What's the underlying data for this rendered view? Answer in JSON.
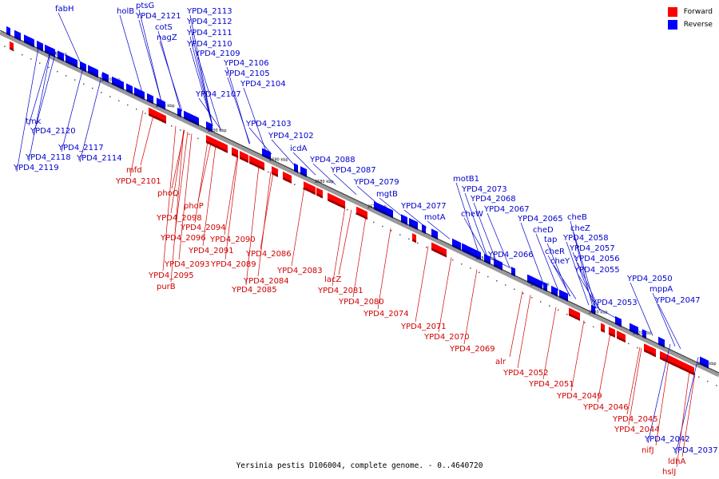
{
  "caption": "Yersinia pestis D106004, complete genome. - 0..4640720",
  "legend": {
    "forward": {
      "label": "Forward",
      "color": "#ff0000"
    },
    "reverse": {
      "label": "Reverse",
      "color": "#0000ff"
    }
  },
  "ticks": [
    "2730 kbp",
    "2720 kbp",
    "2710 kbp",
    "2700 kbp",
    "2690 kbp",
    "2680 kbp",
    "2670 kbp",
    "2660 kbp",
    "2650 kbp",
    "2640 kbp",
    "2630 kbp",
    "2620 kbp",
    "2610 kbp"
  ],
  "reverse_genes": [
    "fabH",
    "holB",
    "ptsG",
    "YPD4_2121",
    "YPD4_2113",
    "YPD4_2112",
    "cotS",
    "nagZ",
    "YPD4_2111",
    "YPD4_2110",
    "YPD4_2109",
    "YPD4_2106",
    "YPD4_2105",
    "YPD4_2104",
    "YPD4_2107",
    "tmk",
    "YPD4_2120",
    "YPD4_2117",
    "YPD4_2118",
    "YPD4_2114",
    "YPD4_2119",
    "YPD4_2103",
    "YPD4_2102",
    "icdA",
    "YPD4_2088",
    "YPD4_2087",
    "YPD4_2079",
    "mgtB",
    "motB1",
    "YPD4_2073",
    "YPD4_2068",
    "YPD4_2077",
    "YPD4_2067",
    "motA",
    "cheW",
    "YPD4_2065",
    "cheB",
    "cheD",
    "cheZ",
    "tap",
    "YPD4_2058",
    "YPD4_2066",
    "cheR",
    "YPD4_2057",
    "cheY",
    "YPD4_2056",
    "YPD4_2055",
    "YPD4_2050",
    "mppA",
    "YPD4_2047",
    "YPD4_2053",
    "YPD4_2042",
    "YPD4_2037"
  ],
  "forward_genes": [
    "mfd",
    "YPD4_2101",
    "phoQ",
    "phoP",
    "YPD4_2098",
    "YPD4_2094",
    "YPD4_2096",
    "YPD4_2090",
    "YPD4_2091",
    "YPD4_2086",
    "YPD4_2093",
    "YPD4_2089",
    "YPD4_2095",
    "purB",
    "YPD4_2083",
    "YPD4_2084",
    "YPD4_2085",
    "lacZ",
    "YPD4_2081",
    "YPD4_2080",
    "YPD4_2074",
    "YPD4_2071",
    "YPD4_2070",
    "YPD4_2069",
    "alr",
    "YPD4_2052",
    "YPD4_2051",
    "YPD4_2049",
    "YPD4_2046",
    "YPD4_2045",
    "YPD4_2044",
    "nifJ",
    "ldhA",
    "hslJ"
  ]
}
